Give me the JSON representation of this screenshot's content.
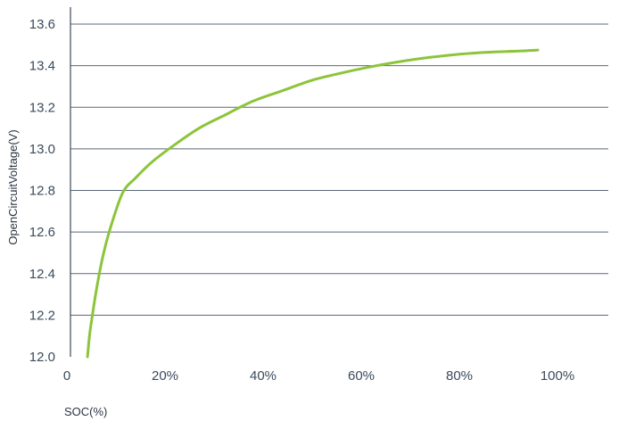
{
  "chart_data": {
    "type": "line",
    "title": "",
    "xlabel": "SOC(%)",
    "ylabel": "OpenCircuitVoltage(V)",
    "xlim": [
      0,
      110
    ],
    "ylim": [
      12.0,
      13.6
    ],
    "x_ticks": [
      0,
      20,
      40,
      60,
      80,
      100
    ],
    "x_tick_labels": [
      "0",
      "20%",
      "40%",
      "60%",
      "80%",
      "100%"
    ],
    "y_ticks": [
      12.0,
      12.2,
      12.4,
      12.6,
      12.8,
      13.0,
      13.2,
      13.4,
      13.6
    ],
    "y_tick_labels": [
      "12.0",
      "12.2",
      "12.4",
      "12.6",
      "12.8",
      "13.0",
      "13.2",
      "13.4",
      "13.6"
    ],
    "grid": "horizontal",
    "series": [
      {
        "color": "#8cc43a",
        "x": [
          4.2,
          4.6,
          5.2,
          6.0,
          7.3,
          9.0,
          11.4,
          14.0,
          17.5,
          22.0,
          27.0,
          32.0,
          38.0,
          44.0,
          50.0,
          56.0,
          62.0,
          68.0,
          74.0,
          80.0,
          86.0,
          92.0,
          96.0
        ],
        "y": [
          12.0,
          12.1,
          12.2,
          12.32,
          12.48,
          12.63,
          12.79,
          12.86,
          12.94,
          13.02,
          13.1,
          13.16,
          13.23,
          13.28,
          13.33,
          13.365,
          13.395,
          13.42,
          13.44,
          13.455,
          13.465,
          13.47,
          13.475
        ]
      }
    ]
  }
}
